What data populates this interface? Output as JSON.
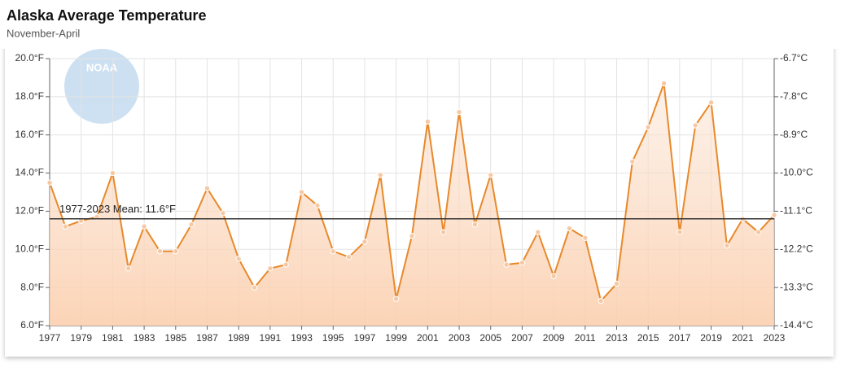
{
  "chart_data": {
    "type": "line",
    "title": "Alaska Average Temperature",
    "subtitle": "November-April",
    "logo": "NOAA",
    "x": [
      1977,
      1978,
      1979,
      1980,
      1981,
      1982,
      1983,
      1984,
      1985,
      1986,
      1987,
      1988,
      1989,
      1990,
      1991,
      1992,
      1993,
      1994,
      1995,
      1996,
      1997,
      1998,
      1999,
      2000,
      2001,
      2002,
      2003,
      2004,
      2005,
      2006,
      2007,
      2008,
      2009,
      2010,
      2011,
      2012,
      2013,
      2014,
      2015,
      2016,
      2017,
      2018,
      2019,
      2020,
      2021,
      2022,
      2023
    ],
    "series": [
      {
        "name": "Average Temperature",
        "color": "#e8892b",
        "values": [
          13.5,
          11.2,
          11.5,
          11.7,
          14.0,
          9.0,
          11.2,
          9.9,
          9.9,
          11.3,
          13.2,
          11.9,
          9.5,
          8.0,
          9.0,
          9.2,
          13.0,
          12.3,
          9.9,
          9.6,
          10.4,
          13.9,
          7.4,
          10.7,
          16.7,
          10.9,
          17.2,
          11.3,
          13.9,
          9.2,
          9.3,
          10.9,
          8.6,
          11.1,
          10.6,
          7.3,
          8.2,
          14.6,
          16.4,
          18.7,
          10.9,
          16.5,
          17.7,
          10.2,
          11.6,
          10.9,
          11.8
        ]
      }
    ],
    "mean_line": {
      "value": 11.6,
      "label": "1977-2023 Mean: 11.6°F"
    },
    "xlim": [
      1977,
      2023
    ],
    "xticks": [
      1977,
      1979,
      1981,
      1983,
      1985,
      1987,
      1989,
      1991,
      1993,
      1995,
      1997,
      1999,
      2001,
      2003,
      2005,
      2007,
      2009,
      2011,
      2013,
      2015,
      2017,
      2019,
      2021,
      2023
    ],
    "ylim": [
      6,
      20
    ],
    "yticks": [
      {
        "value": 6,
        "label": "6.0°F"
      },
      {
        "value": 8,
        "label": "8.0°F"
      },
      {
        "value": 10,
        "label": "10.0°F"
      },
      {
        "value": 12,
        "label": "12.0°F"
      },
      {
        "value": 14,
        "label": "14.0°F"
      },
      {
        "value": 16,
        "label": "16.0°F"
      },
      {
        "value": 18,
        "label": "18.0°F"
      },
      {
        "value": 20,
        "label": "20.0°F"
      }
    ],
    "y2lim": [
      -14.4,
      -6.7
    ],
    "y2ticks": [
      {
        "value": -14.4,
        "label": "-14.4°C"
      },
      {
        "value": -13.3,
        "label": "-13.3°C"
      },
      {
        "value": -12.2,
        "label": "-12.2°C"
      },
      {
        "value": -11.1,
        "label": "-11.1°C"
      },
      {
        "value": -10.0,
        "label": "-10.0°C"
      },
      {
        "value": -8.9,
        "label": "-8.9°C"
      },
      {
        "value": -7.8,
        "label": "-7.8°C"
      },
      {
        "value": -6.7,
        "label": "-6.7°C"
      }
    ],
    "grid": true
  }
}
